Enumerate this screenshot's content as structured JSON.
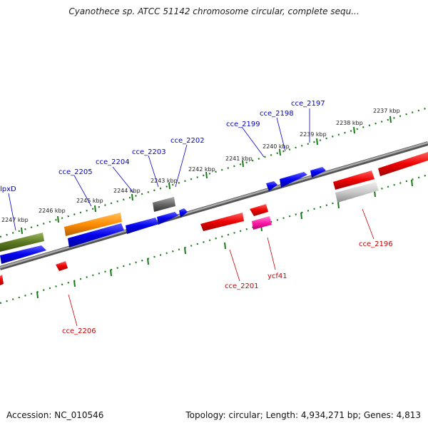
{
  "header": {
    "title": "Cyanothece sp. ATCC 51142 chromosome circular, complete sequ..."
  },
  "footer": {
    "accession": "Accession: NC_010546",
    "summary": "Topology: circular; Length: 4,934,271 bp; Genes: 4,813"
  },
  "colors": {
    "forward_label": "#0000cc",
    "reverse_label": "#cc0000",
    "ruler": "#1a7a1a",
    "backbone": "#7a7a7a"
  },
  "ruler_labels": [
    "2237 kbp",
    "2238 kbp",
    "2239 kbp",
    "2240 kbp",
    "2241 kbp",
    "2242 kbp",
    "2243 kbp",
    "2244 kbp",
    "2245 kbp",
    "2246 kbp",
    "2247 kbp"
  ],
  "forward_genes": [
    "cce_2197",
    "cce_2198",
    "cce_2199",
    "cce_2202",
    "cce_2203",
    "cce_2204",
    "cce_2205",
    "lpxD"
  ],
  "reverse_genes": [
    "cce_2196",
    "ycf41",
    "cce_2201",
    "cce_2206"
  ]
}
